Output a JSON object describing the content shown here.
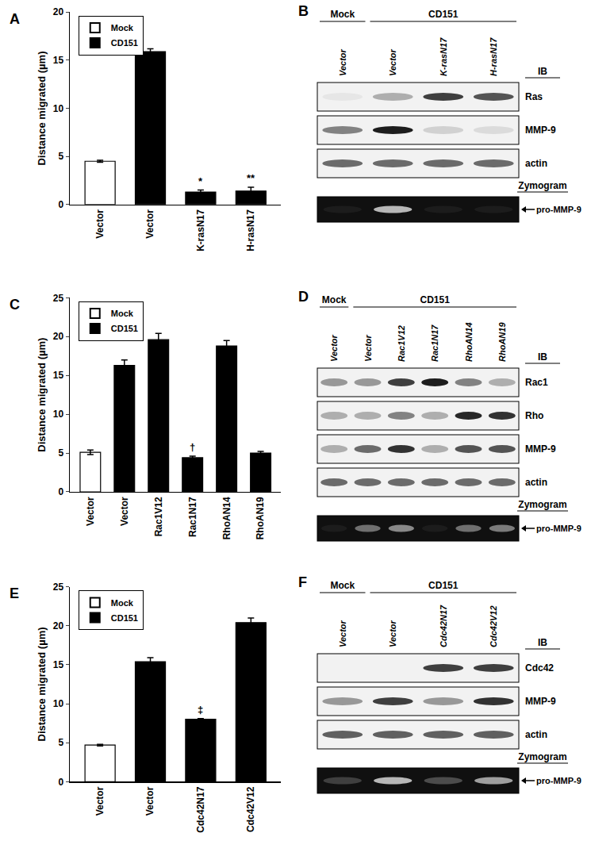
{
  "chart_data": [
    {
      "type": "bar",
      "panel": "A",
      "y_label": "Distance migrated (µm)",
      "categories": [
        "Vector",
        "Vector",
        "K-rasN17",
        "H-rasN17"
      ],
      "series": [
        {
          "name": "Mock",
          "color": "#ffffff",
          "values": [
            4.5,
            null,
            null,
            null
          ],
          "errors": [
            0.1,
            null,
            null,
            null
          ]
        },
        {
          "name": "CD151",
          "color": "#000000",
          "values": [
            null,
            15.9,
            1.3,
            1.4
          ],
          "errors": [
            null,
            0.3,
            0.2,
            0.4
          ]
        }
      ],
      "annotations": [
        {
          "index": 2,
          "text": "*"
        },
        {
          "index": 3,
          "text": "**"
        }
      ],
      "ylim": [
        0,
        20
      ],
      "yticks": [
        0,
        5,
        10,
        15,
        20
      ],
      "grid": false,
      "legend": "upper left"
    },
    {
      "type": "bar",
      "panel": "C",
      "y_label": "Distance migrated (µm)",
      "categories": [
        "Vector",
        "Vector",
        "Rac1V12",
        "Rac1N17",
        "RhoAN14",
        "RhoAN19"
      ],
      "series": [
        {
          "name": "Mock",
          "color": "#ffffff",
          "values": [
            5.1,
            null,
            null,
            null,
            null,
            null
          ],
          "errors": [
            0.3,
            null,
            null,
            null,
            null,
            null
          ]
        },
        {
          "name": "CD151",
          "color": "#000000",
          "values": [
            null,
            16.3,
            19.6,
            4.4,
            18.8,
            5.0
          ],
          "errors": [
            null,
            0.7,
            0.8,
            0.2,
            0.7,
            0.2
          ]
        }
      ],
      "annotations": [
        {
          "index": 3,
          "text": "†"
        }
      ],
      "ylim": [
        0,
        25
      ],
      "yticks": [
        0,
        5,
        10,
        15,
        20,
        25
      ],
      "grid": false,
      "legend": "upper left"
    },
    {
      "type": "bar",
      "panel": "E",
      "y_label": "Distance migrated (µm)",
      "categories": [
        "Vector",
        "Vector",
        "Cdc42N17",
        "Cdc42V12"
      ],
      "series": [
        {
          "name": "Mock",
          "color": "#ffffff",
          "values": [
            4.7,
            null,
            null,
            null
          ],
          "errors": [
            0.1,
            null,
            null,
            null
          ]
        },
        {
          "name": "CD151",
          "color": "#000000",
          "values": [
            null,
            15.4,
            8.0,
            20.4
          ],
          "errors": [
            null,
            0.5,
            0.1,
            0.6
          ]
        }
      ],
      "annotations": [
        {
          "index": 2,
          "text": "‡"
        }
      ],
      "ylim": [
        0,
        25
      ],
      "yticks": [
        0,
        5,
        10,
        15,
        20,
        25
      ],
      "grid": false,
      "legend": "upper left"
    }
  ],
  "blots": [
    {
      "panel": "B",
      "groups": [
        {
          "label": "Mock",
          "lanes": 1
        },
        {
          "label": "CD151",
          "lanes": 3
        }
      ],
      "lanes": [
        "Vector",
        "Vector",
        "K-rasN17",
        "H-rasN17"
      ],
      "ib_label": "IB",
      "rows": [
        {
          "label": "Ras",
          "intensity": [
            0.05,
            0.3,
            0.8,
            0.7
          ]
        },
        {
          "label": "MMP-9",
          "intensity": [
            0.5,
            0.95,
            0.15,
            0.1
          ]
        },
        {
          "label": "actin",
          "intensity": [
            0.6,
            0.6,
            0.6,
            0.6
          ]
        }
      ],
      "zymogram": {
        "title": "Zymogram",
        "label": "pro-MMP-9",
        "intensity": [
          0.05,
          0.7,
          0.05,
          0.05
        ]
      }
    },
    {
      "panel": "D",
      "groups": [
        {
          "label": "Mock",
          "lanes": 1
        },
        {
          "label": "CD151",
          "lanes": 5
        }
      ],
      "lanes": [
        "Vector",
        "Vector",
        "Rac1V12",
        "Rac1N17",
        "RhoAN14",
        "RhoAN19"
      ],
      "ib_label": "IB",
      "rows": [
        {
          "label": "Rac1",
          "intensity": [
            0.4,
            0.4,
            0.8,
            0.95,
            0.5,
            0.3
          ]
        },
        {
          "label": "Rho",
          "intensity": [
            0.3,
            0.3,
            0.5,
            0.3,
            0.9,
            0.85
          ]
        },
        {
          "label": "MMP-9",
          "intensity": [
            0.3,
            0.6,
            0.85,
            0.3,
            0.7,
            0.7
          ]
        },
        {
          "label": "actin",
          "intensity": [
            0.6,
            0.6,
            0.6,
            0.6,
            0.6,
            0.6
          ]
        }
      ],
      "zymogram": {
        "title": "Zymogram",
        "label": "pro-MMP-9",
        "intensity": [
          0.05,
          0.4,
          0.5,
          0.05,
          0.4,
          0.45
        ]
      }
    },
    {
      "panel": "F",
      "groups": [
        {
          "label": "Mock",
          "lanes": 1
        },
        {
          "label": "CD151",
          "lanes": 3
        }
      ],
      "lanes": [
        "Vector",
        "Vector",
        "Cdc42N17",
        "Cdc42V12"
      ],
      "ib_label": "IB",
      "rows": [
        {
          "label": "Cdc42",
          "intensity": [
            0.0,
            0.0,
            0.8,
            0.8
          ]
        },
        {
          "label": "MMP-9",
          "intensity": [
            0.4,
            0.8,
            0.4,
            0.85
          ]
        },
        {
          "label": "actin",
          "intensity": [
            0.65,
            0.65,
            0.65,
            0.65
          ]
        }
      ],
      "zymogram": {
        "title": "Zymogram",
        "label": "pro-MMP-9",
        "intensity": [
          0.2,
          0.7,
          0.25,
          0.6
        ]
      }
    }
  ]
}
